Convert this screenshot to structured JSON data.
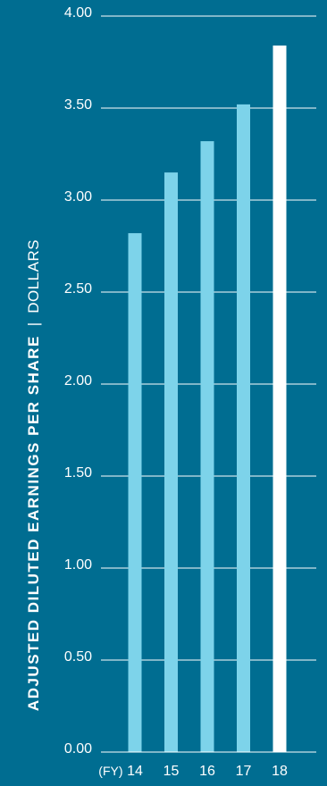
{
  "colors": {
    "background": "#006d91",
    "bar": "#7dd3ea",
    "highlight_bar": "#ffffff",
    "gridline": "#ffffff",
    "text": "#ffffff"
  },
  "chart_data": {
    "type": "bar",
    "categories": [
      "14",
      "15",
      "16",
      "17",
      "18"
    ],
    "category_prefix": "(FY)",
    "values": [
      2.82,
      3.15,
      3.32,
      3.52,
      3.84
    ],
    "highlight_index": 4,
    "ylabel": "ADJUSTED DILUTED EARNINGS PER SHARE",
    "ylabel_separator": "|",
    "yunit": "DOLLARS",
    "ylim": [
      0,
      4
    ],
    "yticks": [
      "0.00",
      "0.50",
      "1.00",
      "1.50",
      "2.00",
      "2.50",
      "3.00",
      "3.50",
      "4.00"
    ],
    "grid": true,
    "legend": "none"
  }
}
